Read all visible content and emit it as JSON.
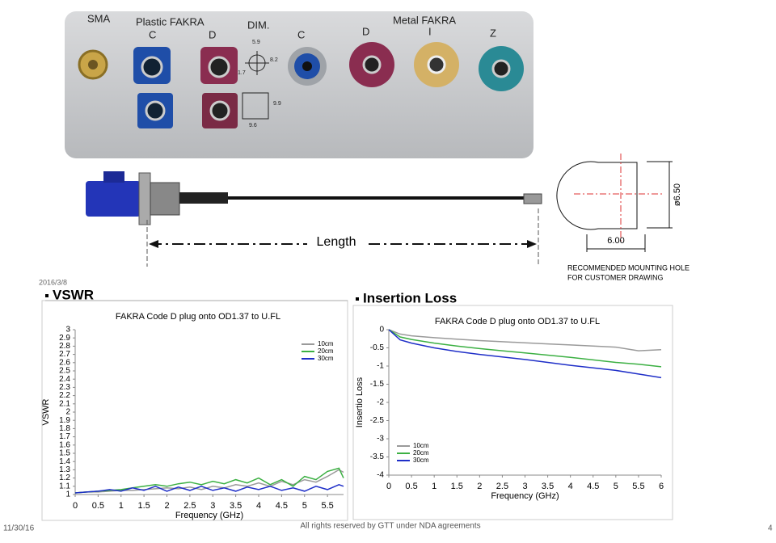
{
  "photo_labels": {
    "sma": "SMA",
    "plastic_fakra": "Plastic FAKRA",
    "dim": "DIM.",
    "metal_fakra": "Metal FAKRA",
    "codes": [
      "C",
      "D",
      "C",
      "D",
      "I",
      "Z"
    ],
    "dims": [
      "5.9",
      "8.2",
      "1.7",
      "9.9",
      "9.6"
    ]
  },
  "length_label": "Length",
  "drawing": {
    "diameter": "ø6.50",
    "width": "6.00",
    "note_lines": [
      "RECOMMENDED  MOUNTING  HOLE",
      "FOR  CUSTOMER  DRAWING"
    ]
  },
  "date_stamp": "2016/3/8",
  "chart_data": [
    {
      "type": "line",
      "heading": "VSWR",
      "title": "FAKRA Code D plug onto OD1.37 to U.FL",
      "x_label": "Frequency (GHz)",
      "y_label": "VSWR",
      "legend": "upper right",
      "x": [
        0,
        0.25,
        0.5,
        0.75,
        1,
        1.25,
        1.5,
        1.75,
        2,
        2.25,
        2.5,
        2.75,
        3,
        3.25,
        3.5,
        3.75,
        4,
        4.25,
        4.5,
        4.75,
        5,
        5.25,
        5.5,
        5.75,
        5.85
      ],
      "series": [
        {
          "name": "10cm",
          "color": "#9a9a9a",
          "values": [
            1.02,
            1.03,
            1.03,
            1.04,
            1.05,
            1.05,
            1.06,
            1.07,
            1.08,
            1.07,
            1.09,
            1.06,
            1.1,
            1.08,
            1.12,
            1.1,
            1.14,
            1.1,
            1.16,
            1.12,
            1.18,
            1.15,
            1.22,
            1.3,
            1.27
          ]
        },
        {
          "name": "20cm",
          "color": "#3cb043",
          "values": [
            1.02,
            1.03,
            1.04,
            1.05,
            1.06,
            1.08,
            1.1,
            1.12,
            1.1,
            1.13,
            1.15,
            1.12,
            1.16,
            1.13,
            1.18,
            1.14,
            1.2,
            1.12,
            1.18,
            1.1,
            1.22,
            1.18,
            1.28,
            1.32,
            1.2
          ]
        },
        {
          "name": "30cm",
          "color": "#1f2fc8",
          "values": [
            1.02,
            1.03,
            1.04,
            1.06,
            1.04,
            1.08,
            1.05,
            1.1,
            1.04,
            1.09,
            1.05,
            1.1,
            1.05,
            1.08,
            1.04,
            1.09,
            1.06,
            1.1,
            1.05,
            1.08,
            1.04,
            1.1,
            1.06,
            1.12,
            1.1
          ]
        }
      ],
      "xlim": [
        0,
        5.85
      ],
      "xticks": [
        0,
        0.5,
        1,
        1.5,
        2,
        2.5,
        3,
        3.5,
        4,
        4.5,
        5,
        5.5
      ],
      "ylim": [
        1,
        3
      ],
      "yticks": [
        1,
        1.1,
        1.2,
        1.3,
        1.4,
        1.5,
        1.6,
        1.7,
        1.8,
        1.9,
        2,
        2.1,
        2.2,
        2.3,
        2.4,
        2.5,
        2.6,
        2.7,
        2.8,
        2.9,
        3
      ]
    },
    {
      "type": "line",
      "heading": "Insertion Loss",
      "title": "FAKRA Code D plug onto OD1.37 to U.FL",
      "x_label": "Frequency (GHz)",
      "y_label": "Insertio Loss",
      "legend": "lower left",
      "x": [
        0,
        0.25,
        0.5,
        1,
        1.5,
        2,
        2.5,
        3,
        3.5,
        4,
        4.5,
        5,
        5.5,
        6
      ],
      "series": [
        {
          "name": "10cm",
          "color": "#9a9a9a",
          "values": [
            0,
            -0.12,
            -0.17,
            -0.22,
            -0.26,
            -0.3,
            -0.33,
            -0.36,
            -0.39,
            -0.42,
            -0.45,
            -0.48,
            -0.58,
            -0.55
          ]
        },
        {
          "name": "20cm",
          "color": "#3cb043",
          "values": [
            0,
            -0.2,
            -0.27,
            -0.37,
            -0.45,
            -0.52,
            -0.58,
            -0.64,
            -0.7,
            -0.76,
            -0.83,
            -0.9,
            -0.95,
            -1.02
          ]
        },
        {
          "name": "30cm",
          "color": "#1f2fc8",
          "values": [
            0,
            -0.28,
            -0.37,
            -0.5,
            -0.6,
            -0.68,
            -0.75,
            -0.82,
            -0.9,
            -0.98,
            -1.05,
            -1.12,
            -1.22,
            -1.32
          ]
        }
      ],
      "xlim": [
        0,
        6
      ],
      "xticks": [
        0,
        0.5,
        1,
        1.5,
        2,
        2.5,
        3,
        3.5,
        4,
        4.5,
        5,
        5.5,
        6
      ],
      "ylim": [
        -4,
        0
      ],
      "yticks": [
        0,
        -0.5,
        -1,
        -1.5,
        -2,
        -2.5,
        -3,
        -3.5,
        -4
      ]
    }
  ],
  "footer": {
    "date": "11/30/16",
    "rights": "All rights reserved by GTT under NDA agreements",
    "page": "4"
  }
}
